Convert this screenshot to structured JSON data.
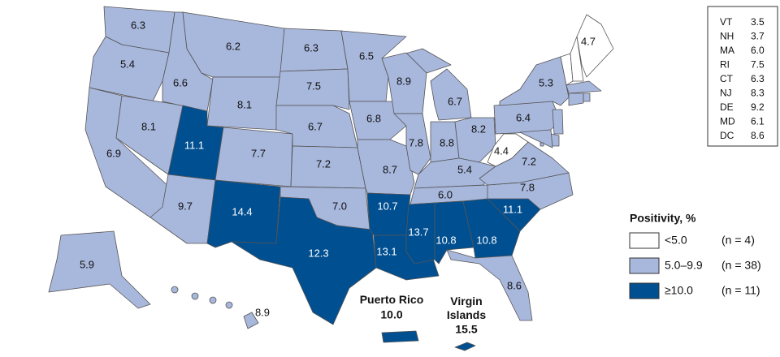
{
  "regions": [
    {
      "value": "6.3",
      "level": 1
    },
    {
      "value": "5.4",
      "level": 1
    },
    {
      "value": "6.9",
      "level": 1
    },
    {
      "value": "8.1",
      "level": 1
    },
    {
      "value": "6.6",
      "level": 1
    },
    {
      "value": "6.2",
      "level": 1
    },
    {
      "value": "8.1",
      "level": 1
    },
    {
      "value": "11.1",
      "level": 2
    },
    {
      "value": "7.7",
      "level": 1
    },
    {
      "value": "9.7",
      "level": 1
    },
    {
      "value": "14.4",
      "level": 2
    },
    {
      "value": "6.3",
      "level": 1
    },
    {
      "value": "7.5",
      "level": 1
    },
    {
      "value": "6.7",
      "level": 1
    },
    {
      "value": "7.2",
      "level": 1
    },
    {
      "value": "7.0",
      "level": 1
    },
    {
      "value": "12.3",
      "level": 2
    },
    {
      "value": "6.5",
      "level": 1
    },
    {
      "value": "6.8",
      "level": 1
    },
    {
      "value": "8.7",
      "level": 1
    },
    {
      "value": "10.7",
      "level": 2
    },
    {
      "value": "13.1",
      "level": 2
    },
    {
      "value": "8.9",
      "level": 1
    },
    {
      "value": "7.8",
      "level": 1
    },
    {
      "value": "6.7",
      "level": 1
    },
    {
      "value": "8.8",
      "level": 1
    },
    {
      "value": "8.2",
      "level": 1
    },
    {
      "value": "5.4",
      "level": 1
    },
    {
      "value": "6.0",
      "level": 1
    },
    {
      "value": "13.7",
      "level": 2
    },
    {
      "value": "10.8",
      "level": 2
    },
    {
      "value": "10.8",
      "level": 2
    },
    {
      "value": "8.6",
      "level": 1
    },
    {
      "value": "11.1",
      "level": 2
    },
    {
      "value": "7.8",
      "level": 1
    },
    {
      "value": "7.2",
      "level": 1
    },
    {
      "value": "4.4",
      "level": 0
    },
    {
      "value": "6.4",
      "level": 1
    },
    {
      "value": "5.3",
      "level": 1
    },
    {
      "value": "4.7",
      "level": 0
    },
    {
      "value": "5.9",
      "level": 1
    },
    {
      "value": "8.9",
      "level": 1
    }
  ],
  "territories": [
    {
      "name": "Puerto Rico",
      "value": "10.0",
      "level": 2
    },
    {
      "name": "Virgin Islands",
      "value": "15.5",
      "level": 2
    }
  ],
  "inset_table": {
    "rows": [
      {
        "state": "VT",
        "value": "3.5",
        "level": 0
      },
      {
        "state": "NH",
        "value": "3.7",
        "level": 0
      },
      {
        "state": "MA",
        "value": "6.0",
        "level": 1
      },
      {
        "state": "RI",
        "value": "7.5",
        "level": 1
      },
      {
        "state": "CT",
        "value": "6.3",
        "level": 1
      },
      {
        "state": "NJ",
        "value": "8.3",
        "level": 1
      },
      {
        "state": "DE",
        "value": "9.2",
        "level": 1
      },
      {
        "state": "MD",
        "value": "6.1",
        "level": 1
      },
      {
        "state": "DC",
        "value": "8.6",
        "level": 1
      }
    ]
  },
  "legend": {
    "title": "Positivity, %",
    "items": [
      {
        "label": "<5.0",
        "count": "(n = 4)",
        "color": "#ffffff"
      },
      {
        "label": "5.0–9.9",
        "count": "(n = 38)",
        "color": "#a8b7dc"
      },
      {
        "label": "≥10.0",
        "count": "(n = 11)",
        "color": "#004f91"
      }
    ]
  }
}
